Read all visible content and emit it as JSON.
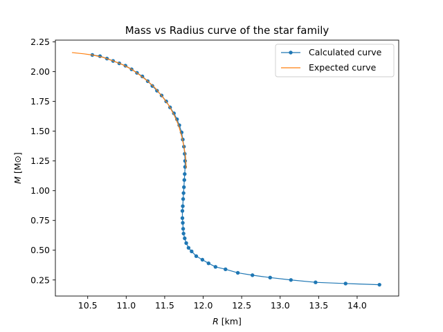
{
  "chart_data": {
    "type": "line",
    "title": "Mass vs Radius curve of the star family",
    "xlabel_main": "R",
    "xlabel_unit": "[km]",
    "ylabel_main": "M",
    "ylabel_unit": "[M⊙]",
    "xlim": [
      10.08,
      14.54
    ],
    "ylim": [
      0.115,
      2.265
    ],
    "xticks": [
      10.5,
      11.0,
      11.5,
      12.0,
      12.5,
      13.0,
      13.5,
      14.0
    ],
    "xtick_labels": [
      "10.5",
      "11.0",
      "11.5",
      "12.0",
      "12.5",
      "13.0",
      "13.5",
      "14.0"
    ],
    "yticks": [
      0.25,
      0.5,
      0.75,
      1.0,
      1.25,
      1.5,
      1.75,
      2.0,
      2.25
    ],
    "ytick_labels": [
      "0.25",
      "0.50",
      "0.75",
      "1.00",
      "1.25",
      "1.50",
      "1.75",
      "2.00",
      "2.25"
    ],
    "grid": false,
    "legend_position": "top-right",
    "colors": {
      "calculated": "#1f77b4",
      "expected": "#ff7f0e"
    },
    "series": [
      {
        "name": "Calculated curve",
        "marker": "circle",
        "x": [
          10.56,
          10.66,
          10.75,
          10.83,
          10.91,
          10.99,
          11.07,
          11.14,
          11.21,
          11.28,
          11.34,
          11.4,
          11.46,
          11.52,
          11.57,
          11.62,
          11.66,
          11.69,
          11.72,
          11.735,
          11.75,
          11.76,
          11.765,
          11.765,
          11.76,
          11.755,
          11.75,
          11.745,
          11.74,
          11.735,
          11.73,
          11.73,
          11.735,
          11.74,
          11.745,
          11.76,
          11.78,
          11.81,
          11.85,
          11.91,
          11.99,
          12.07,
          12.16,
          12.29,
          12.45,
          12.64,
          12.87,
          13.14,
          13.46,
          13.85,
          14.29
        ],
        "y": [
          2.14,
          2.13,
          2.11,
          2.09,
          2.07,
          2.05,
          2.02,
          1.99,
          1.96,
          1.92,
          1.88,
          1.84,
          1.8,
          1.75,
          1.7,
          1.65,
          1.6,
          1.55,
          1.49,
          1.43,
          1.37,
          1.31,
          1.25,
          1.2,
          1.14,
          1.09,
          1.03,
          0.98,
          0.93,
          0.87,
          0.83,
          0.77,
          0.73,
          0.68,
          0.64,
          0.6,
          0.56,
          0.52,
          0.49,
          0.45,
          0.42,
          0.39,
          0.36,
          0.34,
          0.31,
          0.29,
          0.27,
          0.25,
          0.23,
          0.22,
          0.21
        ]
      },
      {
        "name": "Expected curve",
        "marker": "none",
        "x": [
          10.3,
          10.45,
          10.56,
          10.7,
          10.83,
          10.95,
          11.07,
          11.18,
          11.28,
          11.38,
          11.47,
          11.55,
          11.62,
          11.68,
          11.72,
          11.75,
          11.77,
          11.78
        ],
        "y": [
          2.16,
          2.15,
          2.14,
          2.12,
          2.09,
          2.06,
          2.02,
          1.97,
          1.92,
          1.86,
          1.79,
          1.72,
          1.64,
          1.55,
          1.46,
          1.37,
          1.29,
          1.19
        ]
      }
    ]
  }
}
